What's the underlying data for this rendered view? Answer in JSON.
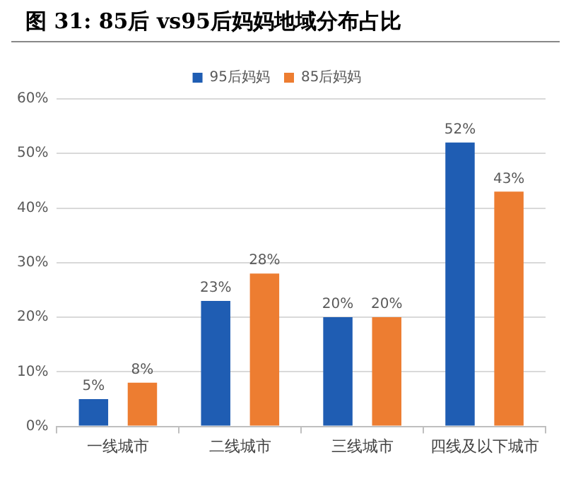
{
  "chart_data": {
    "type": "bar",
    "title": "图 31:  85后 vs95后妈妈地域分布占比",
    "categories": [
      "一线城市",
      "二线城市",
      "三线城市",
      "四线及以下城市"
    ],
    "series": [
      {
        "name": "95后妈妈",
        "color": "#1f5db3",
        "values": [
          5,
          23,
          20,
          52
        ],
        "value_labels": [
          "5%",
          "23%",
          "20%",
          "52%"
        ]
      },
      {
        "name": "85后妈妈",
        "color": "#ed7d31",
        "values": [
          8,
          28,
          20,
          43
        ],
        "value_labels": [
          "8%",
          "28%",
          "20%",
          "43%"
        ]
      }
    ],
    "ylim": [
      0,
      60
    ],
    "yticks": [
      {
        "value": 0,
        "label": "0%"
      },
      {
        "value": 10,
        "label": "10%"
      },
      {
        "value": 20,
        "label": "20%"
      },
      {
        "value": 30,
        "label": "30%"
      },
      {
        "value": 40,
        "label": "40%"
      },
      {
        "value": 50,
        "label": "50%"
      },
      {
        "value": 60,
        "label": "60%"
      }
    ],
    "grid": "y",
    "legend": "top"
  }
}
